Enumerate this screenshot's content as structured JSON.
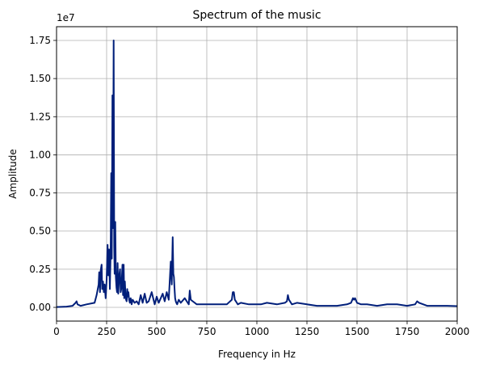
{
  "chart_data": {
    "type": "line",
    "title": "Spectrum of the music",
    "xlabel": "Frequency in Hz",
    "ylabel": "Amplitude",
    "y_offset_label": "1e7",
    "xlim": [
      0,
      2000
    ],
    "ylim": [
      -0.09,
      1.84
    ],
    "y_scale_factor": 10000000,
    "x_ticks": [
      0,
      250,
      500,
      750,
      1000,
      1250,
      1500,
      1750,
      2000
    ],
    "x_tick_labels": [
      "0",
      "250",
      "500",
      "750",
      "1000",
      "1250",
      "1500",
      "1750",
      "2000"
    ],
    "y_ticks": [
      0,
      0.25,
      0.5,
      0.75,
      1.0,
      1.25,
      1.5,
      1.75
    ],
    "y_tick_labels": [
      "0.00",
      "0.25",
      "0.50",
      "0.75",
      "1.00",
      "1.25",
      "1.50",
      "1.75"
    ],
    "grid": true,
    "line_color": "#001f7a",
    "series": [
      {
        "x": [
          0,
          50,
          80,
          95,
          100,
          105,
          120,
          150,
          190,
          200,
          210,
          213,
          217,
          220,
          225,
          228,
          232,
          236,
          240,
          245,
          250,
          255,
          258,
          262,
          266,
          270,
          273,
          276,
          279,
          282,
          285,
          288,
          290,
          293,
          296,
          299,
          302,
          305,
          308,
          311,
          314,
          317,
          320,
          323,
          326,
          329,
          332,
          335,
          338,
          341,
          344,
          347,
          350,
          353,
          356,
          359,
          362,
          366,
          370,
          375,
          380,
          390,
          400,
          410,
          420,
          430,
          440,
          450,
          460,
          475,
          490,
          500,
          510,
          520,
          530,
          540,
          550,
          560,
          570,
          575,
          580,
          583,
          586,
          589,
          592,
          595,
          598,
          602,
          610,
          620,
          640,
          660,
          665,
          670,
          680,
          700,
          750,
          800,
          850,
          875,
          880,
          885,
          890,
          895,
          905,
          920,
          960,
          1000,
          1020,
          1050,
          1100,
          1140,
          1150,
          1155,
          1160,
          1175,
          1200,
          1250,
          1300,
          1350,
          1400,
          1450,
          1470,
          1480,
          1485,
          1490,
          1500,
          1520,
          1550,
          1600,
          1650,
          1700,
          1750,
          1790,
          1800,
          1810,
          1850,
          1900,
          1950,
          2000
        ],
        "y": [
          0.002,
          0.005,
          0.01,
          0.03,
          0.04,
          0.02,
          0.01,
          0.02,
          0.03,
          0.08,
          0.15,
          0.23,
          0.1,
          0.24,
          0.28,
          0.12,
          0.17,
          0.1,
          0.15,
          0.06,
          0.18,
          0.41,
          0.21,
          0.38,
          0.12,
          0.37,
          0.88,
          0.32,
          1.39,
          0.52,
          1.75,
          0.4,
          0.22,
          0.56,
          0.2,
          0.13,
          0.1,
          0.29,
          0.09,
          0.16,
          0.22,
          0.25,
          0.1,
          0.12,
          0.18,
          0.28,
          0.08,
          0.28,
          0.06,
          0.17,
          0.09,
          0.05,
          0.04,
          0.12,
          0.07,
          0.1,
          0.05,
          0.03,
          0.06,
          0.02,
          0.05,
          0.03,
          0.04,
          0.02,
          0.08,
          0.03,
          0.09,
          0.03,
          0.04,
          0.1,
          0.02,
          0.07,
          0.03,
          0.06,
          0.09,
          0.04,
          0.1,
          0.05,
          0.3,
          0.15,
          0.46,
          0.22,
          0.2,
          0.12,
          0.06,
          0.04,
          0.03,
          0.02,
          0.05,
          0.03,
          0.06,
          0.02,
          0.11,
          0.05,
          0.04,
          0.02,
          0.02,
          0.02,
          0.02,
          0.05,
          0.1,
          0.1,
          0.05,
          0.04,
          0.02,
          0.03,
          0.02,
          0.02,
          0.02,
          0.03,
          0.02,
          0.03,
          0.04,
          0.08,
          0.05,
          0.02,
          0.03,
          0.02,
          0.01,
          0.01,
          0.01,
          0.02,
          0.03,
          0.06,
          0.05,
          0.06,
          0.03,
          0.02,
          0.02,
          0.01,
          0.02,
          0.02,
          0.01,
          0.02,
          0.04,
          0.03,
          0.01,
          0.01,
          0.01,
          0.008
        ]
      }
    ]
  }
}
